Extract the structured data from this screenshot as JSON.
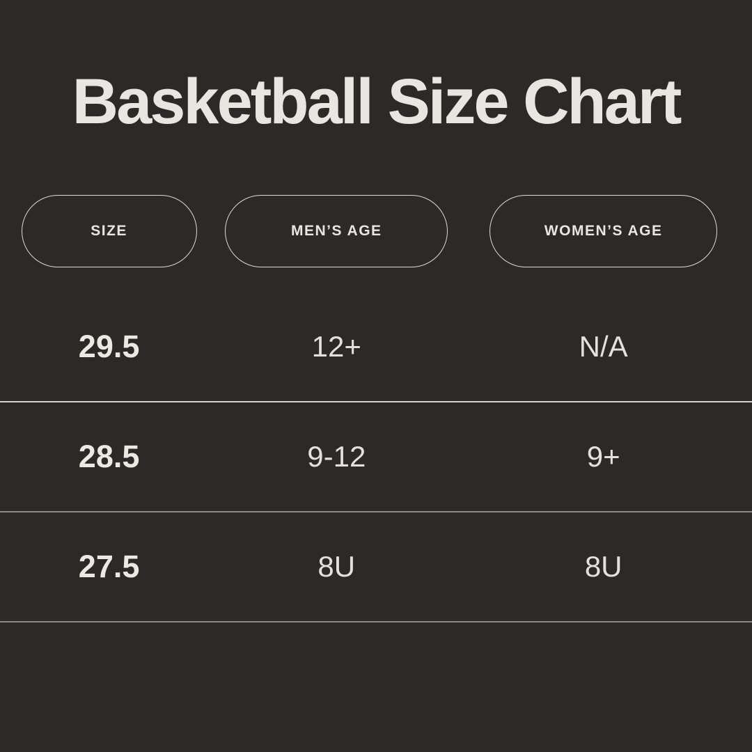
{
  "title": "Basketball Size Chart",
  "header": {
    "columns": [
      {
        "id": "size",
        "label": "SIZE"
      },
      {
        "id": "mens-age",
        "label": "MEN’S AGE"
      },
      {
        "id": "womens-age",
        "label": "WOMEN’S AGE"
      }
    ]
  },
  "table": {
    "rows": [
      {
        "size": "29.5",
        "mens_age": "12+",
        "womens_age": "N/A"
      },
      {
        "size": "28.5",
        "mens_age": "9-12",
        "womens_age": "9+"
      },
      {
        "size": "27.5",
        "mens_age": "8U",
        "womens_age": "8U"
      }
    ]
  },
  "colors": {
    "background": "#2b2a28",
    "text": "#e8e6e0",
    "pill_border": "#dcdad4",
    "divider_bright": "#d6d4ce",
    "divider_dim": "#8e8c8a"
  },
  "chart_data": {
    "type": "table",
    "title": "Basketball Size Chart",
    "columns": [
      "SIZE",
      "MEN’S AGE",
      "WOMEN’S AGE"
    ],
    "rows": [
      [
        "29.5",
        "12+",
        "N/A"
      ],
      [
        "28.5",
        "9-12",
        "9+"
      ],
      [
        "27.5",
        "8U",
        "8U"
      ]
    ]
  }
}
